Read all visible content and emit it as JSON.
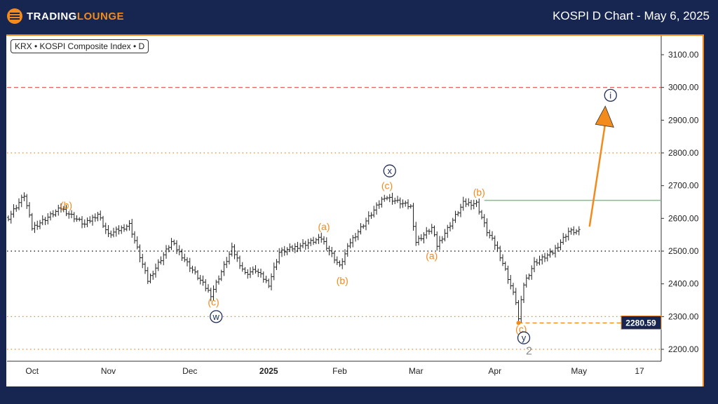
{
  "header": {
    "logo_main": "TRADING",
    "logo_accent": "LOUNGE",
    "title": "KOSPI D Chart - May 6, 2025"
  },
  "chart_data": {
    "type": "ohlc",
    "symbol": "KRX • KOSPI Composite Index • D",
    "ylim": [
      2170,
      3160
    ],
    "y_ticks": [
      "3100.00",
      "3000.00",
      "2900.00",
      "2800.00",
      "2700.00",
      "2600.00",
      "2500.00",
      "2400.00",
      "2300.00",
      "2200.00"
    ],
    "y_tick_values": [
      3100,
      3000,
      2900,
      2800,
      2700,
      2600,
      2500,
      2400,
      2300,
      2200
    ],
    "x_ticks": [
      {
        "label": "Oct",
        "t": 9
      },
      {
        "label": "Nov",
        "t": 38
      },
      {
        "label": "Dec",
        "t": 69
      },
      {
        "label": "2025",
        "t": 99,
        "bold": true
      },
      {
        "label": "Feb",
        "t": 126
      },
      {
        "label": "Mar",
        "t": 155
      },
      {
        "label": "Apr",
        "t": 185
      },
      {
        "label": "May",
        "t": 217
      },
      {
        "label": "17",
        "t": 240
      }
    ],
    "xlim": [
      -1,
      249
    ],
    "price_path": [
      [
        0,
        2603
      ],
      [
        6,
        2671
      ],
      [
        9,
        2571
      ],
      [
        20,
        2631
      ],
      [
        29,
        2581
      ],
      [
        34,
        2614
      ],
      [
        38,
        2549
      ],
      [
        46,
        2581
      ],
      [
        53,
        2410
      ],
      [
        62,
        2528
      ],
      [
        69,
        2453
      ],
      [
        77,
        2367
      ],
      [
        85,
        2507
      ],
      [
        90,
        2431
      ],
      [
        94,
        2442
      ],
      [
        99,
        2399
      ],
      [
        103,
        2496
      ],
      [
        111,
        2517
      ],
      [
        119,
        2539
      ],
      [
        126,
        2453
      ],
      [
        130,
        2528
      ],
      [
        143,
        2667
      ],
      [
        153,
        2635
      ],
      [
        155,
        2528
      ],
      [
        161,
        2571
      ],
      [
        163,
        2517
      ],
      [
        173,
        2646
      ],
      [
        178,
        2646
      ],
      [
        182,
        2560
      ],
      [
        186,
        2507
      ],
      [
        189,
        2442
      ],
      [
        193,
        2346
      ],
      [
        194,
        2292
      ],
      [
        196,
        2399
      ],
      [
        200,
        2464
      ],
      [
        207,
        2496
      ],
      [
        213,
        2560
      ],
      [
        217,
        2560
      ]
    ],
    "levels": [
      {
        "price": 3000,
        "style": "dashed",
        "color": "#d9534f"
      },
      {
        "price": 2800,
        "style": "dotted",
        "color": "#f28a1c"
      },
      {
        "price": 2500,
        "style": "dotted",
        "color": "#000000"
      },
      {
        "price": 2300,
        "style": "dotted",
        "color": "#f28a1c"
      },
      {
        "price": 2200,
        "style": "dotted",
        "color": "#f28a1c"
      }
    ],
    "resistance": {
      "price": 2655,
      "from_t": 181,
      "color": "#7cc47c"
    },
    "low_marker": {
      "price": 2280.59,
      "t": 194,
      "label": "2280.59",
      "color": "#f28a1c"
    },
    "projection": {
      "from": [
        221,
        2575
      ],
      "to": [
        227,
        2930
      ],
      "color": "#f28a1c"
    },
    "wave_labels": [
      {
        "text": "(b)",
        "t": 22,
        "price": 2640,
        "kind": "orange"
      },
      {
        "text": "(c)",
        "t": 78,
        "price": 2345,
        "kind": "orange"
      },
      {
        "text": "w",
        "t": 79,
        "price": 2300,
        "kind": "circle"
      },
      {
        "text": "(a)",
        "t": 120,
        "price": 2575,
        "kind": "orange"
      },
      {
        "text": "(b)",
        "t": 127,
        "price": 2410,
        "kind": "orange"
      },
      {
        "text": "(c)",
        "t": 144,
        "price": 2700,
        "kind": "orange"
      },
      {
        "text": "x",
        "t": 145,
        "price": 2745,
        "kind": "circle"
      },
      {
        "text": "(a)",
        "t": 161,
        "price": 2486,
        "kind": "orange"
      },
      {
        "text": "(b)",
        "t": 179,
        "price": 2680,
        "kind": "orange"
      },
      {
        "text": "(c)",
        "t": 195,
        "price": 2262,
        "kind": "orange"
      },
      {
        "text": "y",
        "t": 196,
        "price": 2235,
        "kind": "circle"
      },
      {
        "text": "2",
        "t": 198,
        "price": 2195,
        "kind": "gray"
      },
      {
        "text": "i",
        "t": 229,
        "price": 2976,
        "kind": "circle"
      }
    ]
  }
}
